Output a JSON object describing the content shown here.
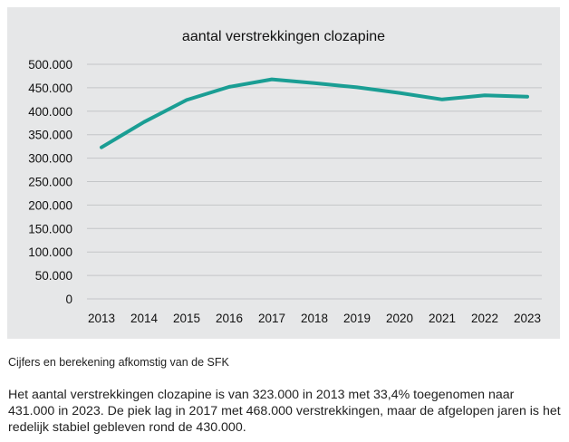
{
  "chart_data": {
    "type": "line",
    "title": "aantal verstrekkingen clozapine",
    "x": [
      "2013",
      "2014",
      "2015",
      "2016",
      "2017",
      "2018",
      "2019",
      "2020",
      "2021",
      "2022",
      "2023"
    ],
    "series": [
      {
        "values": [
          323000,
          377000,
          424000,
          452000,
          468000,
          460000,
          451000,
          439000,
          425000,
          434000,
          431000
        ]
      }
    ],
    "ylim": [
      0,
      500000
    ],
    "yticks": [
      0,
      50000,
      100000,
      150000,
      200000,
      250000,
      300000,
      350000,
      400000,
      450000,
      500000
    ],
    "ytick_labels": [
      "0",
      "50.000",
      "100.000",
      "150.000",
      "200.000",
      "250.000",
      "300.000",
      "350.000",
      "400.000",
      "450.000",
      "500.000"
    ],
    "grid": true,
    "line_color": "#1a9e94",
    "grid_color": "#c4c6c8"
  },
  "source_note": "Cijfers en berekening afkomstig van de SFK",
  "caption": "Het aantal verstrekkingen clozapine is van 323.000 in 2013 met 33,4% toegenomen naar 431.000 in 2023. De piek lag in 2017 met 468.000 verstrekkingen, maar de afgelopen jaren is het redelijk stabiel gebleven rond de 430.000."
}
